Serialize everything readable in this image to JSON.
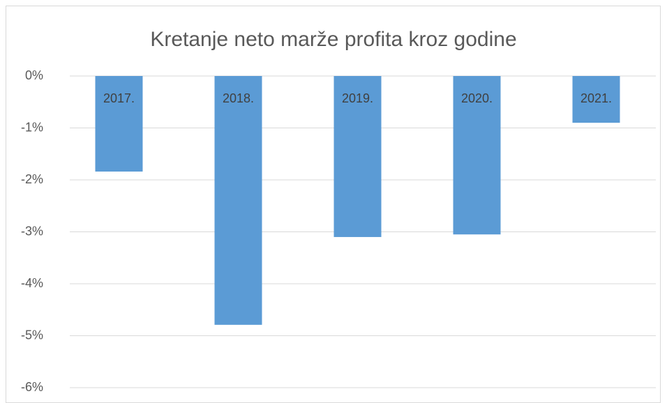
{
  "chart_data": {
    "type": "bar",
    "title": "Kretanje neto marže profita kroz godine",
    "categories": [
      "2017.",
      "2018.",
      "2019.",
      "2020.",
      "2021."
    ],
    "values": [
      -1.84,
      -4.79,
      -3.1,
      -3.05,
      -0.9
    ],
    "color": "#5b9bd5",
    "ylim": [
      -6,
      0
    ],
    "yticks": [
      {
        "value": 0,
        "label": "0%"
      },
      {
        "value": -1,
        "label": "-1%"
      },
      {
        "value": -2,
        "label": "-2%"
      },
      {
        "value": -3,
        "label": "-3%"
      },
      {
        "value": -4,
        "label": "-4%"
      },
      {
        "value": -5,
        "label": "-5%"
      },
      {
        "value": -6,
        "label": "-6%"
      }
    ],
    "grid": true
  }
}
